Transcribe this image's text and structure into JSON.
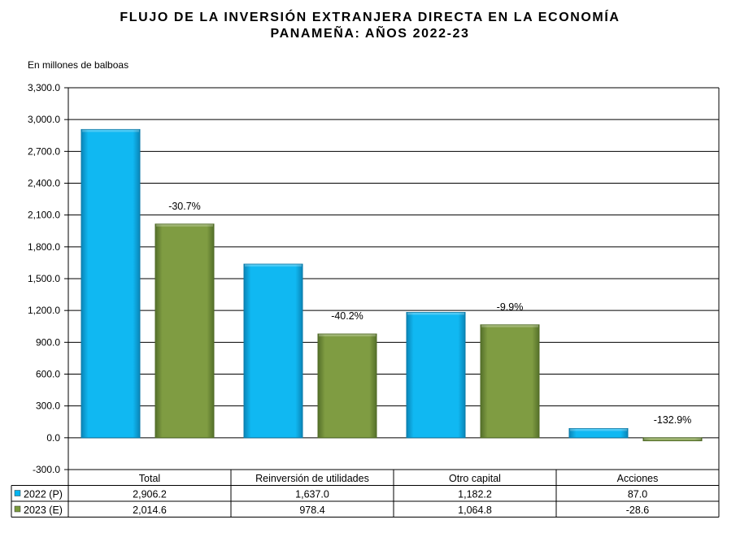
{
  "title_line1": "FLUJO DE LA INVERSIÓN EXTRANJERA DIRECTA EN LA ECONOMÍA",
  "title_line2": "PANAMEÑA: AÑOS 2022-23",
  "unit_label": "En millones de balboas",
  "chart_data": {
    "type": "bar",
    "title": "FLUJO DE LA INVERSIÓN EXTRANJERA DIRECTA EN LA ECONOMÍA PANAMEÑA: AÑOS 2022-23",
    "ylabel": "En millones de balboas",
    "ylim": [
      -300,
      3300
    ],
    "yticks": [
      -300,
      0,
      300,
      600,
      900,
      1200,
      1500,
      1800,
      2100,
      2400,
      2700,
      3000,
      3300
    ],
    "ytick_labels": [
      "-300.0",
      "0.0",
      "300.0",
      "600.0",
      "900.0",
      "1,200.0",
      "1,500.0",
      "1,800.0",
      "2,100.0",
      "2,400.0",
      "2,700.0",
      "3,000.0",
      "3,300.0"
    ],
    "grid": true,
    "categories": [
      "Total",
      "Reinversión de utilidades",
      "Otro capital",
      "Acciones"
    ],
    "series": [
      {
        "name": "2022 (P)",
        "color": "#00b4f0",
        "values": [
          2906.2,
          1637.0,
          1182.2,
          87.0
        ],
        "value_labels": [
          "2,906.2",
          "1,637.0",
          "1,182.2",
          "87.0"
        ]
      },
      {
        "name": "2023 (E)",
        "color": "#7a9a3c",
        "values": [
          2014.6,
          978.4,
          1064.8,
          -28.6
        ],
        "value_labels": [
          "2,014.6",
          "978.4",
          "1,064.8",
          "-28.6"
        ]
      }
    ],
    "annotations": [
      "-30.7%",
      "-40.2%",
      "-9.9%",
      "-132.9%"
    ]
  }
}
